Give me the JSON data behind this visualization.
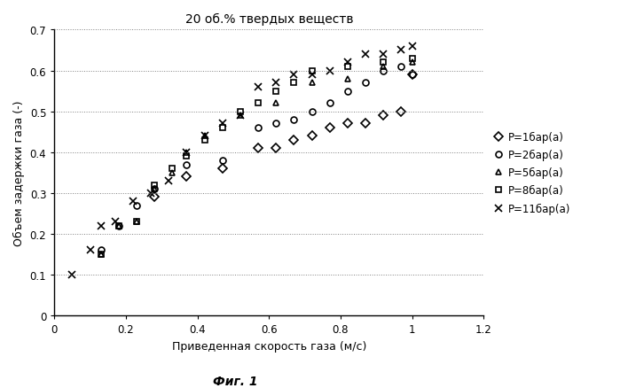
{
  "title": "20 об.% твердых веществ",
  "xlabel": "Приведенная скорость газа (м/с)",
  "ylabel": "Объем задержки газа (-)",
  "figcaption": "Фиг. 1",
  "xlim": [
    0,
    1.2
  ],
  "ylim": [
    0,
    0.7
  ],
  "xticks": [
    0,
    0.2,
    0.4,
    0.6,
    0.8,
    1.0,
    1.2
  ],
  "yticks": [
    0,
    0.1,
    0.2,
    0.3,
    0.4,
    0.5,
    0.6,
    0.7
  ],
  "series": [
    {
      "label": "P=1бар(a)",
      "marker": "D",
      "markersize": 5,
      "color": "black",
      "fillstyle": "none",
      "x": [
        0.28,
        0.37,
        0.47,
        0.57,
        0.62,
        0.67,
        0.72,
        0.77,
        0.82,
        0.87,
        0.92,
        0.97,
        1.0
      ],
      "y": [
        0.29,
        0.34,
        0.36,
        0.41,
        0.41,
        0.43,
        0.44,
        0.46,
        0.47,
        0.47,
        0.49,
        0.5,
        0.59
      ]
    },
    {
      "label": "P=2бар(a)",
      "marker": "o",
      "markersize": 5,
      "color": "black",
      "fillstyle": "none",
      "x": [
        0.13,
        0.18,
        0.23,
        0.28,
        0.37,
        0.47,
        0.57,
        0.62,
        0.67,
        0.72,
        0.77,
        0.82,
        0.87,
        0.92,
        0.97,
        1.0
      ],
      "y": [
        0.16,
        0.22,
        0.27,
        0.31,
        0.37,
        0.38,
        0.46,
        0.47,
        0.48,
        0.5,
        0.52,
        0.55,
        0.57,
        0.6,
        0.61,
        0.59
      ]
    },
    {
      "label": "P=5бар(a)",
      "marker": "^",
      "markersize": 5,
      "color": "black",
      "fillstyle": "none",
      "x": [
        0.13,
        0.18,
        0.23,
        0.28,
        0.33,
        0.37,
        0.42,
        0.52,
        0.62,
        0.72,
        0.82,
        0.92,
        1.0
      ],
      "y": [
        0.15,
        0.22,
        0.23,
        0.31,
        0.35,
        0.4,
        0.44,
        0.49,
        0.52,
        0.57,
        0.58,
        0.61,
        0.62
      ]
    },
    {
      "label": "P=8бар(a)",
      "marker": "s",
      "markersize": 5,
      "color": "black",
      "fillstyle": "none",
      "x": [
        0.13,
        0.18,
        0.23,
        0.28,
        0.33,
        0.37,
        0.42,
        0.47,
        0.52,
        0.57,
        0.62,
        0.67,
        0.72,
        0.82,
        0.92,
        1.0
      ],
      "y": [
        0.15,
        0.22,
        0.23,
        0.32,
        0.36,
        0.39,
        0.43,
        0.46,
        0.5,
        0.52,
        0.55,
        0.57,
        0.6,
        0.61,
        0.62,
        0.63
      ]
    },
    {
      "label": "P=11бар(a)",
      "marker": "x",
      "markersize": 6,
      "color": "black",
      "fillstyle": "full",
      "x": [
        0.05,
        0.1,
        0.13,
        0.17,
        0.22,
        0.27,
        0.32,
        0.37,
        0.42,
        0.47,
        0.52,
        0.57,
        0.62,
        0.67,
        0.72,
        0.77,
        0.82,
        0.87,
        0.92,
        0.97,
        1.0
      ],
      "y": [
        0.1,
        0.16,
        0.22,
        0.23,
        0.28,
        0.3,
        0.33,
        0.4,
        0.44,
        0.47,
        0.49,
        0.56,
        0.57,
        0.59,
        0.59,
        0.6,
        0.62,
        0.64,
        0.64,
        0.65,
        0.66
      ]
    }
  ]
}
